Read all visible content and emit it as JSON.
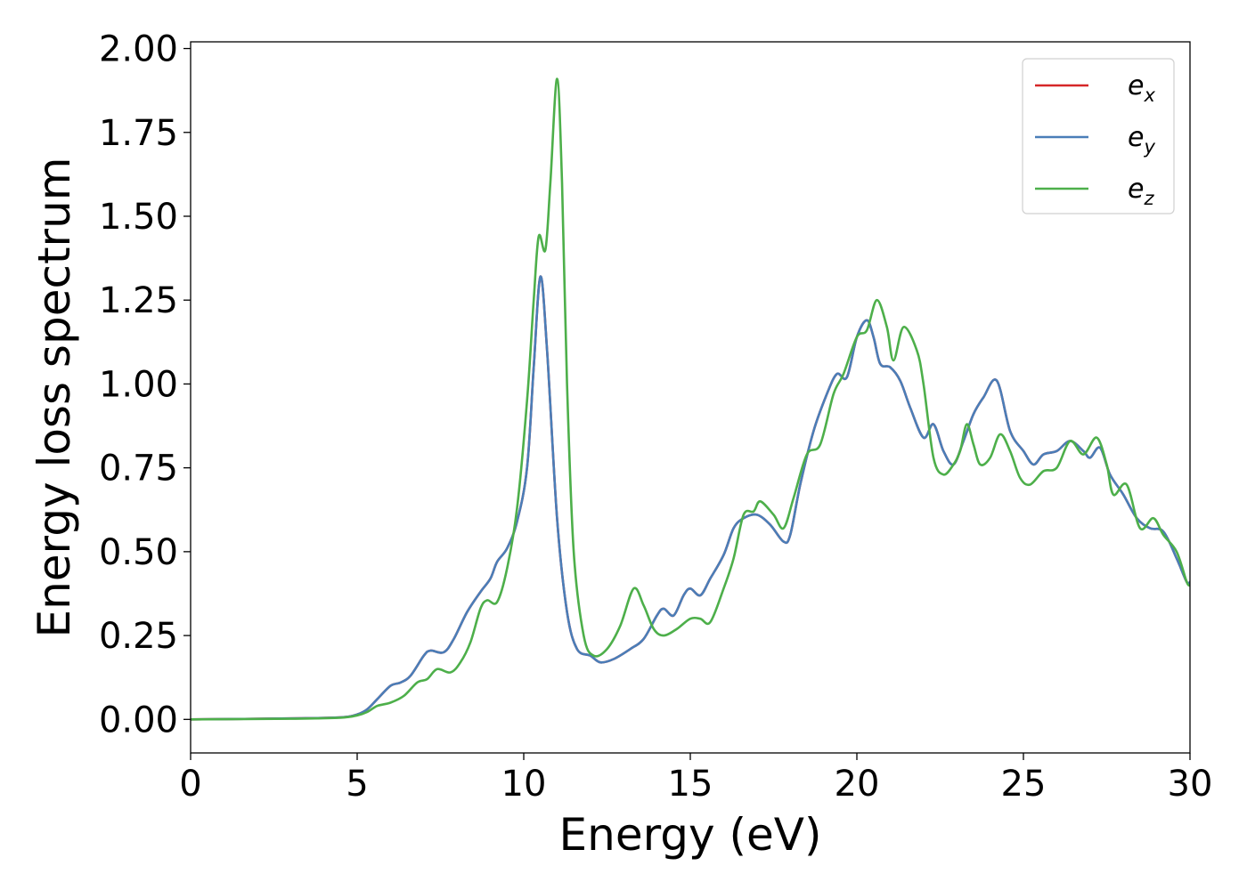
{
  "chart_data": {
    "type": "line",
    "title": "",
    "xlabel": "Energy (eV)",
    "ylabel": "Energy loss spectrum",
    "xlim": [
      0,
      30
    ],
    "ylim": [
      -0.1,
      2.02
    ],
    "xticks": [
      0,
      5,
      10,
      15,
      20,
      25,
      30
    ],
    "xtick_labels": [
      "0",
      "5",
      "10",
      "15",
      "20",
      "25",
      "30"
    ],
    "yticks": [
      0,
      0.25,
      0.5,
      0.75,
      1.0,
      1.25,
      1.5,
      1.75,
      2.0
    ],
    "ytick_labels": [
      "0.00",
      "0.25",
      "0.50",
      "0.75",
      "1.00",
      "1.25",
      "1.50",
      "1.75",
      "2.00"
    ],
    "grid": false,
    "legend_position": "top-right",
    "series": [
      {
        "name": "e",
        "subscript": "x",
        "color": "#d62728",
        "points": [
          [
            0,
            0
          ],
          [
            3,
            0.003
          ],
          [
            4.5,
            0.006
          ],
          [
            5,
            0.015
          ],
          [
            5.3,
            0.03
          ],
          [
            5.6,
            0.06
          ],
          [
            6,
            0.1
          ],
          [
            6.3,
            0.11
          ],
          [
            6.6,
            0.13
          ],
          [
            7,
            0.19
          ],
          [
            7.2,
            0.205
          ],
          [
            7.6,
            0.2
          ],
          [
            7.9,
            0.24
          ],
          [
            8.3,
            0.32
          ],
          [
            8.7,
            0.38
          ],
          [
            9,
            0.42
          ],
          [
            9.2,
            0.47
          ],
          [
            9.5,
            0.51
          ],
          [
            9.8,
            0.59
          ],
          [
            10.1,
            0.75
          ],
          [
            10.3,
            1.05
          ],
          [
            10.5,
            1.32
          ],
          [
            10.7,
            1.1
          ],
          [
            11,
            0.6
          ],
          [
            11.3,
            0.32
          ],
          [
            11.6,
            0.21
          ],
          [
            12,
            0.19
          ],
          [
            12.3,
            0.17
          ],
          [
            12.7,
            0.18
          ],
          [
            13.2,
            0.21
          ],
          [
            13.6,
            0.24
          ],
          [
            14,
            0.31
          ],
          [
            14.2,
            0.33
          ],
          [
            14.5,
            0.31
          ],
          [
            14.8,
            0.37
          ],
          [
            15,
            0.39
          ],
          [
            15.3,
            0.37
          ],
          [
            15.6,
            0.42
          ],
          [
            16,
            0.49
          ],
          [
            16.3,
            0.57
          ],
          [
            16.6,
            0.6
          ],
          [
            17,
            0.61
          ],
          [
            17.4,
            0.58
          ],
          [
            17.8,
            0.53
          ],
          [
            18,
            0.55
          ],
          [
            18.3,
            0.7
          ],
          [
            18.7,
            0.86
          ],
          [
            19.1,
            0.97
          ],
          [
            19.4,
            1.03
          ],
          [
            19.7,
            1.02
          ],
          [
            20,
            1.14
          ],
          [
            20.3,
            1.19
          ],
          [
            20.5,
            1.14
          ],
          [
            20.7,
            1.06
          ],
          [
            21,
            1.05
          ],
          [
            21.3,
            1.01
          ],
          [
            21.6,
            0.93
          ],
          [
            22,
            0.84
          ],
          [
            22.3,
            0.88
          ],
          [
            22.6,
            0.8
          ],
          [
            22.9,
            0.76
          ],
          [
            23.2,
            0.83
          ],
          [
            23.5,
            0.91
          ],
          [
            23.8,
            0.96
          ],
          [
            24.2,
            1.01
          ],
          [
            24.6,
            0.86
          ],
          [
            25,
            0.8
          ],
          [
            25.3,
            0.76
          ],
          [
            25.6,
            0.79
          ],
          [
            26,
            0.8
          ],
          [
            26.4,
            0.83
          ],
          [
            26.8,
            0.8
          ],
          [
            27,
            0.78
          ],
          [
            27.3,
            0.81
          ],
          [
            27.6,
            0.73
          ],
          [
            28,
            0.67
          ],
          [
            28.4,
            0.6
          ],
          [
            28.8,
            0.57
          ],
          [
            29.2,
            0.56
          ],
          [
            29.6,
            0.48
          ],
          [
            29.9,
            0.41
          ],
          [
            30,
            0.41
          ]
        ]
      },
      {
        "name": "e",
        "subscript": "y",
        "color": "#4a7eb8",
        "points": [
          [
            0,
            0
          ],
          [
            3,
            0.003
          ],
          [
            4.5,
            0.006
          ],
          [
            5,
            0.015
          ],
          [
            5.3,
            0.03
          ],
          [
            5.6,
            0.06
          ],
          [
            6,
            0.1
          ],
          [
            6.3,
            0.11
          ],
          [
            6.6,
            0.13
          ],
          [
            7,
            0.19
          ],
          [
            7.2,
            0.205
          ],
          [
            7.6,
            0.2
          ],
          [
            7.9,
            0.24
          ],
          [
            8.3,
            0.32
          ],
          [
            8.7,
            0.38
          ],
          [
            9,
            0.42
          ],
          [
            9.2,
            0.47
          ],
          [
            9.5,
            0.51
          ],
          [
            9.8,
            0.59
          ],
          [
            10.1,
            0.75
          ],
          [
            10.3,
            1.05
          ],
          [
            10.5,
            1.32
          ],
          [
            10.7,
            1.1
          ],
          [
            11,
            0.6
          ],
          [
            11.3,
            0.32
          ],
          [
            11.6,
            0.21
          ],
          [
            12,
            0.19
          ],
          [
            12.3,
            0.17
          ],
          [
            12.7,
            0.18
          ],
          [
            13.2,
            0.21
          ],
          [
            13.6,
            0.24
          ],
          [
            14,
            0.31
          ],
          [
            14.2,
            0.33
          ],
          [
            14.5,
            0.31
          ],
          [
            14.8,
            0.37
          ],
          [
            15,
            0.39
          ],
          [
            15.3,
            0.37
          ],
          [
            15.6,
            0.42
          ],
          [
            16,
            0.49
          ],
          [
            16.3,
            0.57
          ],
          [
            16.6,
            0.6
          ],
          [
            17,
            0.61
          ],
          [
            17.4,
            0.58
          ],
          [
            17.8,
            0.53
          ],
          [
            18,
            0.55
          ],
          [
            18.3,
            0.7
          ],
          [
            18.7,
            0.86
          ],
          [
            19.1,
            0.97
          ],
          [
            19.4,
            1.03
          ],
          [
            19.7,
            1.02
          ],
          [
            20,
            1.14
          ],
          [
            20.3,
            1.19
          ],
          [
            20.5,
            1.14
          ],
          [
            20.7,
            1.06
          ],
          [
            21,
            1.05
          ],
          [
            21.3,
            1.01
          ],
          [
            21.6,
            0.93
          ],
          [
            22,
            0.84
          ],
          [
            22.3,
            0.88
          ],
          [
            22.6,
            0.8
          ],
          [
            22.9,
            0.76
          ],
          [
            23.2,
            0.83
          ],
          [
            23.5,
            0.91
          ],
          [
            23.8,
            0.96
          ],
          [
            24.2,
            1.01
          ],
          [
            24.6,
            0.86
          ],
          [
            25,
            0.8
          ],
          [
            25.3,
            0.76
          ],
          [
            25.6,
            0.79
          ],
          [
            26,
            0.8
          ],
          [
            26.4,
            0.83
          ],
          [
            26.8,
            0.8
          ],
          [
            27,
            0.78
          ],
          [
            27.3,
            0.81
          ],
          [
            27.6,
            0.73
          ],
          [
            28,
            0.67
          ],
          [
            28.4,
            0.6
          ],
          [
            28.8,
            0.57
          ],
          [
            29.2,
            0.56
          ],
          [
            29.6,
            0.48
          ],
          [
            29.9,
            0.41
          ],
          [
            30,
            0.41
          ]
        ]
      },
      {
        "name": "e",
        "subscript": "z",
        "color": "#4daf4a",
        "points": [
          [
            0,
            0
          ],
          [
            3,
            0.002
          ],
          [
            4.5,
            0.005
          ],
          [
            5,
            0.012
          ],
          [
            5.3,
            0.022
          ],
          [
            5.6,
            0.04
          ],
          [
            6,
            0.05
          ],
          [
            6.4,
            0.07
          ],
          [
            6.8,
            0.11
          ],
          [
            7.1,
            0.12
          ],
          [
            7.4,
            0.15
          ],
          [
            7.8,
            0.14
          ],
          [
            8.1,
            0.17
          ],
          [
            8.4,
            0.23
          ],
          [
            8.7,
            0.33
          ],
          [
            8.9,
            0.355
          ],
          [
            9.2,
            0.35
          ],
          [
            9.5,
            0.45
          ],
          [
            9.8,
            0.63
          ],
          [
            10.1,
            0.95
          ],
          [
            10.3,
            1.25
          ],
          [
            10.45,
            1.44
          ],
          [
            10.65,
            1.4
          ],
          [
            10.8,
            1.6
          ],
          [
            11,
            1.91
          ],
          [
            11.15,
            1.6
          ],
          [
            11.3,
            1.0
          ],
          [
            11.5,
            0.5
          ],
          [
            11.8,
            0.25
          ],
          [
            12.1,
            0.19
          ],
          [
            12.5,
            0.21
          ],
          [
            12.9,
            0.28
          ],
          [
            13.3,
            0.39
          ],
          [
            13.6,
            0.34
          ],
          [
            13.9,
            0.27
          ],
          [
            14.2,
            0.25
          ],
          [
            14.6,
            0.27
          ],
          [
            15,
            0.3
          ],
          [
            15.3,
            0.3
          ],
          [
            15.6,
            0.29
          ],
          [
            16,
            0.39
          ],
          [
            16.3,
            0.48
          ],
          [
            16.6,
            0.61
          ],
          [
            16.9,
            0.62
          ],
          [
            17.1,
            0.65
          ],
          [
            17.5,
            0.61
          ],
          [
            17.8,
            0.57
          ],
          [
            18.1,
            0.66
          ],
          [
            18.5,
            0.79
          ],
          [
            18.9,
            0.82
          ],
          [
            19.3,
            0.97
          ],
          [
            19.6,
            1.03
          ],
          [
            20,
            1.14
          ],
          [
            20.3,
            1.16
          ],
          [
            20.6,
            1.25
          ],
          [
            20.9,
            1.17
          ],
          [
            21.1,
            1.07
          ],
          [
            21.4,
            1.17
          ],
          [
            21.8,
            1.1
          ],
          [
            22,
            1.0
          ],
          [
            22.3,
            0.78
          ],
          [
            22.6,
            0.73
          ],
          [
            22.9,
            0.76
          ],
          [
            23.1,
            0.8
          ],
          [
            23.3,
            0.88
          ],
          [
            23.5,
            0.82
          ],
          [
            23.7,
            0.76
          ],
          [
            24,
            0.78
          ],
          [
            24.3,
            0.85
          ],
          [
            24.6,
            0.8
          ],
          [
            24.9,
            0.72
          ],
          [
            25.2,
            0.7
          ],
          [
            25.6,
            0.74
          ],
          [
            26,
            0.75
          ],
          [
            26.4,
            0.83
          ],
          [
            26.8,
            0.79
          ],
          [
            27.2,
            0.84
          ],
          [
            27.5,
            0.76
          ],
          [
            27.7,
            0.67
          ],
          [
            28.1,
            0.7
          ],
          [
            28.5,
            0.57
          ],
          [
            28.9,
            0.6
          ],
          [
            29.2,
            0.55
          ],
          [
            29.6,
            0.5
          ],
          [
            29.9,
            0.41
          ],
          [
            30,
            0.4
          ]
        ]
      }
    ]
  }
}
